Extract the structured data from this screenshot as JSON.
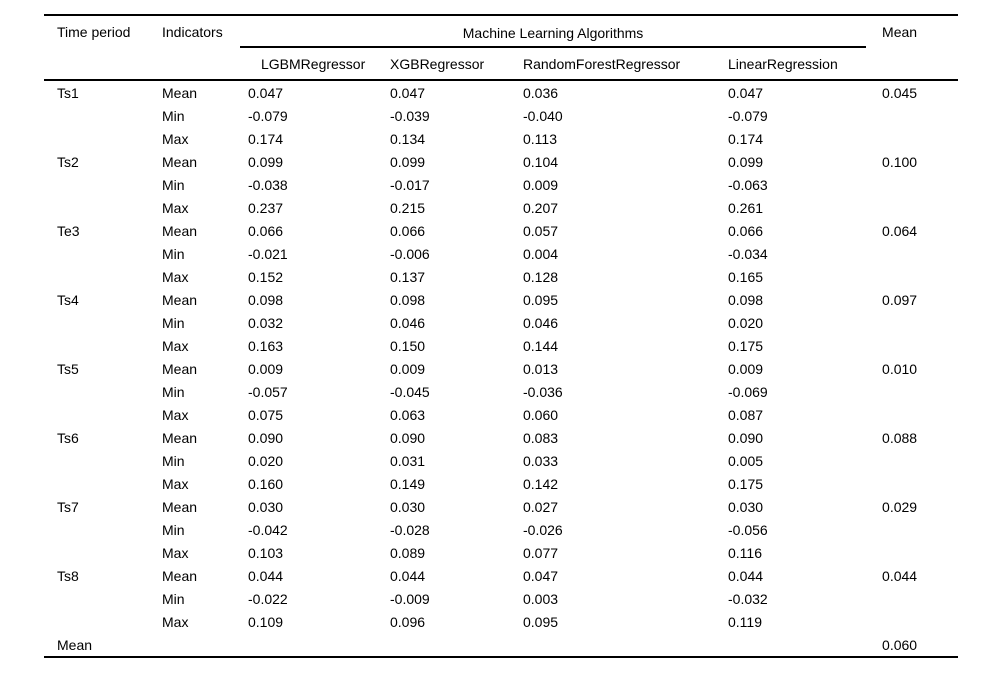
{
  "page": {
    "background": "#ffffff",
    "text_color": "#000000"
  },
  "table": {
    "header": {
      "time_period": "Time period",
      "indicators": "Indicators",
      "group": "Machine Learning Algorithms",
      "mean": "Mean",
      "algorithms": [
        "LGBMRegressor",
        "XGBRegressor",
        "RandomForestRegressor",
        "LinearRegression"
      ]
    },
    "groups": [
      {
        "period": "Ts1",
        "rows": [
          {
            "indicator": "Mean",
            "values": [
              "0.047",
              "0.047",
              "0.036",
              "0.047"
            ],
            "row_mean": "0.045"
          },
          {
            "indicator": "Min",
            "values": [
              "-0.079",
              "-0.039",
              "-0.040",
              "-0.079"
            ],
            "row_mean": ""
          },
          {
            "indicator": "Max",
            "values": [
              "0.174",
              "0.134",
              "0.113",
              "0.174"
            ],
            "row_mean": ""
          }
        ]
      },
      {
        "period": "Ts2",
        "rows": [
          {
            "indicator": "Mean",
            "values": [
              "0.099",
              "0.099",
              "0.104",
              "0.099"
            ],
            "row_mean": "0.100"
          },
          {
            "indicator": "Min",
            "values": [
              "-0.038",
              "-0.017",
              "0.009",
              "-0.063"
            ],
            "row_mean": ""
          },
          {
            "indicator": "Max",
            "values": [
              "0.237",
              "0.215",
              "0.207",
              "0.261"
            ],
            "row_mean": ""
          }
        ]
      },
      {
        "period": "Te3",
        "rows": [
          {
            "indicator": "Mean",
            "values": [
              "0.066",
              "0.066",
              "0.057",
              "0.066"
            ],
            "row_mean": "0.064"
          },
          {
            "indicator": "Min",
            "values": [
              "-0.021",
              "-0.006",
              "0.004",
              "-0.034"
            ],
            "row_mean": ""
          },
          {
            "indicator": "Max",
            "values": [
              "0.152",
              "0.137",
              "0.128",
              "0.165"
            ],
            "row_mean": ""
          }
        ]
      },
      {
        "period": "Ts4",
        "rows": [
          {
            "indicator": "Mean",
            "values": [
              "0.098",
              "0.098",
              "0.095",
              "0.098"
            ],
            "row_mean": "0.097"
          },
          {
            "indicator": "Min",
            "values": [
              "0.032",
              "0.046",
              "0.046",
              "0.020"
            ],
            "row_mean": ""
          },
          {
            "indicator": "Max",
            "values": [
              "0.163",
              "0.150",
              "0.144",
              "0.175"
            ],
            "row_mean": ""
          }
        ]
      },
      {
        "period": "Ts5",
        "rows": [
          {
            "indicator": "Mean",
            "values": [
              "0.009",
              "0.009",
              "0.013",
              "0.009"
            ],
            "row_mean": "0.010"
          },
          {
            "indicator": "Min",
            "values": [
              "-0.057",
              "-0.045",
              "-0.036",
              "-0.069"
            ],
            "row_mean": ""
          },
          {
            "indicator": "Max",
            "values": [
              "0.075",
              "0.063",
              "0.060",
              "0.087"
            ],
            "row_mean": ""
          }
        ]
      },
      {
        "period": "Ts6",
        "rows": [
          {
            "indicator": "Mean",
            "values": [
              "0.090",
              "0.090",
              "0.083",
              "0.090"
            ],
            "row_mean": "0.088"
          },
          {
            "indicator": "Min",
            "values": [
              "0.020",
              "0.031",
              "0.033",
              "0.005"
            ],
            "row_mean": ""
          },
          {
            "indicator": "Max",
            "values": [
              "0.160",
              "0.149",
              "0.142",
              "0.175"
            ],
            "row_mean": ""
          }
        ]
      },
      {
        "period": "Ts7",
        "rows": [
          {
            "indicator": "Mean",
            "values": [
              "0.030",
              "0.030",
              "0.027",
              "0.030"
            ],
            "row_mean": "0.029"
          },
          {
            "indicator": "Min",
            "values": [
              "-0.042",
              "-0.028",
              "-0.026",
              "-0.056"
            ],
            "row_mean": ""
          },
          {
            "indicator": "Max",
            "values": [
              "0.103",
              "0.089",
              "0.077",
              "0.116"
            ],
            "row_mean": ""
          }
        ]
      },
      {
        "period": "Ts8",
        "rows": [
          {
            "indicator": "Mean",
            "values": [
              "0.044",
              "0.044",
              "0.047",
              "0.044"
            ],
            "row_mean": "0.044"
          },
          {
            "indicator": "Min",
            "values": [
              "-0.022",
              "-0.009",
              "0.003",
              "-0.032"
            ],
            "row_mean": ""
          },
          {
            "indicator": "Max",
            "values": [
              "0.109",
              "0.096",
              "0.095",
              "0.119"
            ],
            "row_mean": ""
          }
        ]
      }
    ],
    "footer": {
      "label": "Mean",
      "mean": "0.060"
    }
  }
}
